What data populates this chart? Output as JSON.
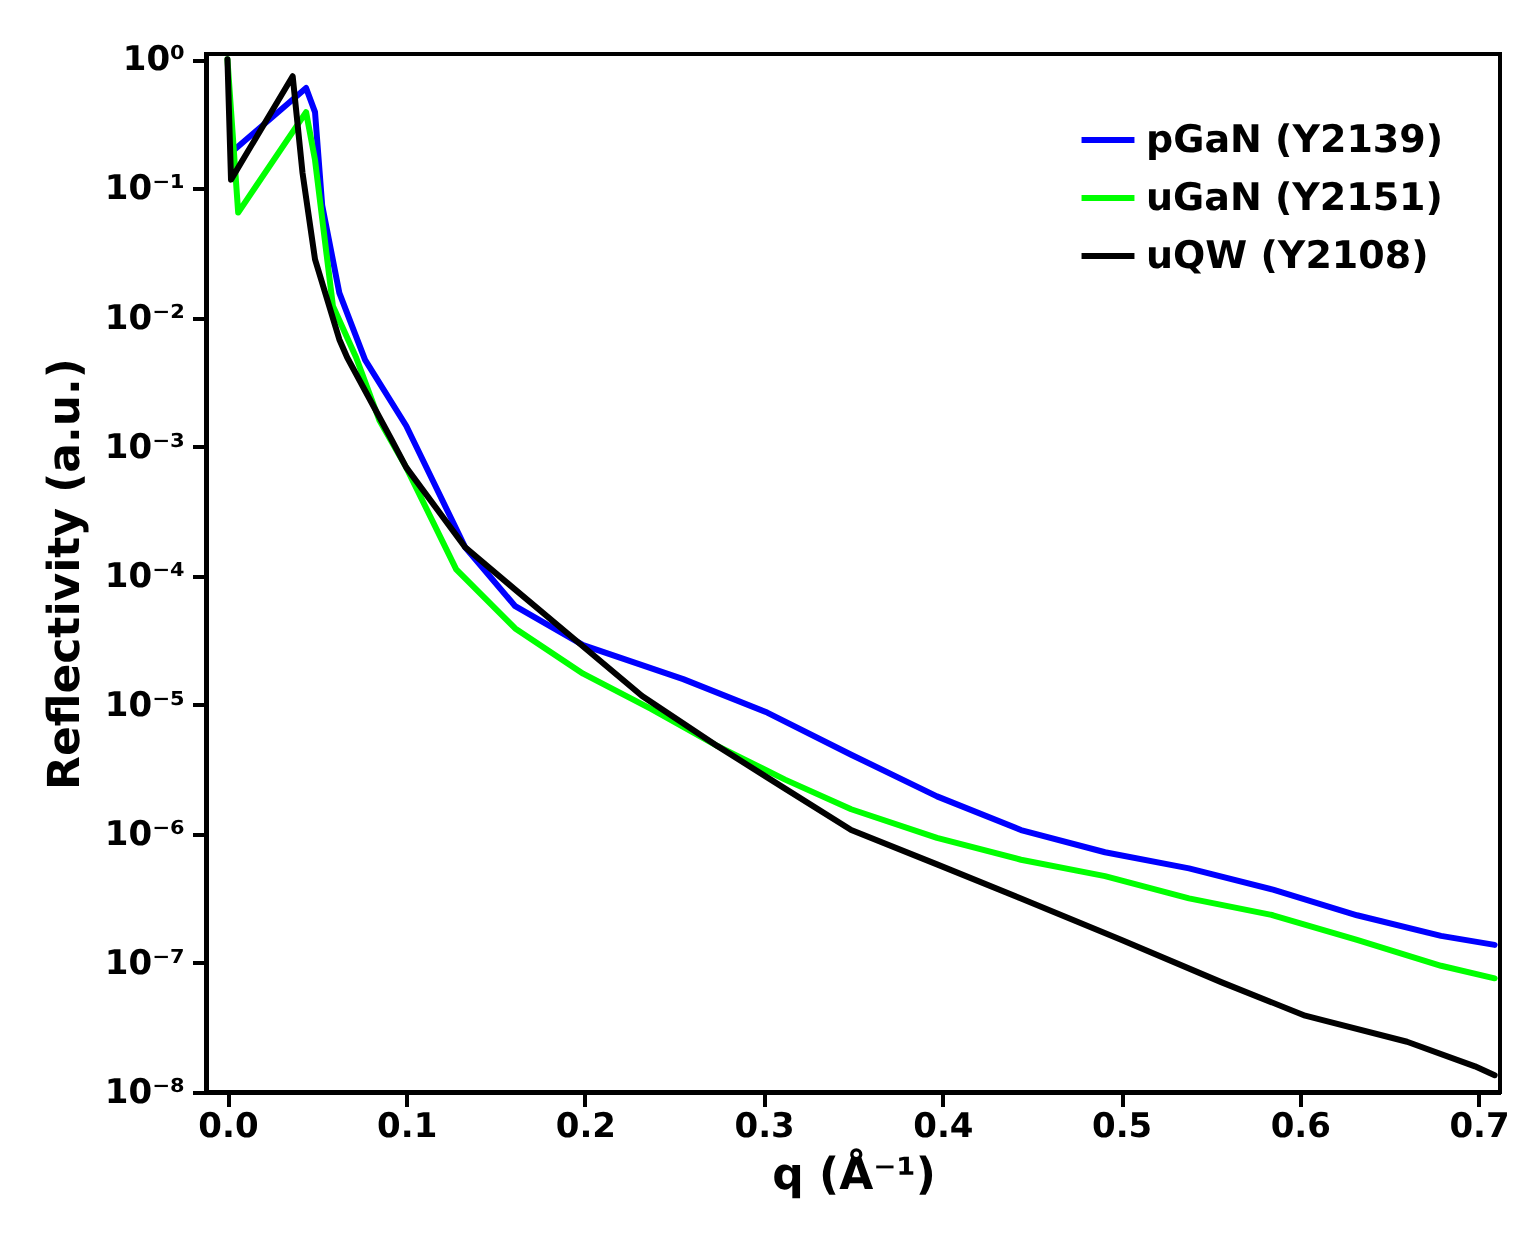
{
  "chart_data": {
    "type": "line",
    "xlabel": "q (Å⁻¹)",
    "ylabel": "Reflectivity (a.u.)",
    "log": "y",
    "legend": "top right",
    "grid": false,
    "marker": "none",
    "line_style": "solid",
    "xlim": [
      -0.012,
      0.712
    ],
    "xticks": [
      {
        "value": 0,
        "label": "0.0"
      },
      0.1,
      0.2,
      0.3,
      0.4,
      0.5,
      0.6,
      0.7
    ],
    "ylim": [
      1e-08,
      1.1
    ],
    "yticks": [
      {
        "value": 1,
        "label": "10⁰"
      },
      {
        "value": 0.1,
        "label": "10⁻¹"
      },
      {
        "value": 0.01,
        "label": "10⁻²"
      },
      {
        "value": 0.001,
        "label": "10⁻³"
      },
      {
        "value": 0.0001,
        "label": "10⁻⁴"
      },
      {
        "value": 1e-05,
        "label": "10⁻⁵"
      },
      {
        "value": 1e-06,
        "label": "10⁻⁶"
      },
      {
        "value": 1e-07,
        "label": "10⁻⁷"
      },
      {
        "value": 1e-08,
        "label": "10⁻⁸"
      }
    ],
    "series": [
      {
        "name": "pGaN (Y2139)",
        "color": "#0000ff",
        "x": [
          0.004,
          0.044,
          0.049,
          0.053,
          0.0626,
          0.077,
          0.1,
          0.133,
          0.161,
          0.199,
          0.255,
          0.302,
          0.349,
          0.397,
          0.444,
          0.491,
          0.538,
          0.585,
          0.632,
          0.679,
          0.709
        ],
        "values": [
          0.2,
          0.6,
          0.39,
          0.074,
          0.0155,
          0.0047,
          0.00145,
          0.000166,
          5.8e-05,
          2.9e-05,
          1.58e-05,
          8.7e-06,
          4.1e-06,
          1.95e-06,
          1.07e-06,
          7.2e-07,
          5.4e-07,
          3.7e-07,
          2.34e-07,
          1.62e-07,
          1.38e-07
        ]
      },
      {
        "name": "uGaN (Y2151)",
        "color": "#00ff00",
        "x": [
          0,
          0.006,
          0.044,
          0.049,
          0.059,
          0.072,
          0.085,
          0.1,
          0.128,
          0.161,
          0.199,
          0.237,
          0.274,
          0.312,
          0.349,
          0.397,
          0.444,
          0.491,
          0.538,
          0.585,
          0.632,
          0.679,
          0.709
        ],
        "values": [
          1,
          0.065,
          0.39,
          0.166,
          0.0123,
          0.0049,
          0.0016,
          0.00069,
          0.000112,
          3.9e-05,
          1.74e-05,
          9.3e-06,
          4.8e-06,
          2.63e-06,
          1.55e-06,
          9.3e-07,
          6.3e-07,
          4.7e-07,
          3.16e-07,
          2.34e-07,
          1.51e-07,
          9.5e-08,
          7.6e-08
        ]
      },
      {
        "name": "uQW (Y2108)",
        "color": "#000000",
        "x": [
          0,
          0.002,
          0.0365,
          0.042,
          0.049,
          0.0626,
          0.067,
          0.092,
          0.1,
          0.133,
          0.161,
          0.19,
          0.232,
          0.274,
          0.312,
          0.349,
          0.397,
          0.444,
          0.5,
          0.556,
          0.603,
          0.66,
          0.698,
          0.709
        ],
        "values": [
          1,
          0.117,
          0.74,
          0.132,
          0.0282,
          0.00676,
          0.0049,
          0.00112,
          0.00069,
          0.000166,
          7.8e-05,
          3.6e-05,
          1.17e-05,
          4.8e-06,
          2.24e-06,
          1.07e-06,
          5.8e-07,
          3.16e-07,
          1.51e-07,
          7.1e-08,
          3.9e-08,
          2.45e-08,
          1.58e-08,
          1.35e-08
        ]
      }
    ]
  }
}
